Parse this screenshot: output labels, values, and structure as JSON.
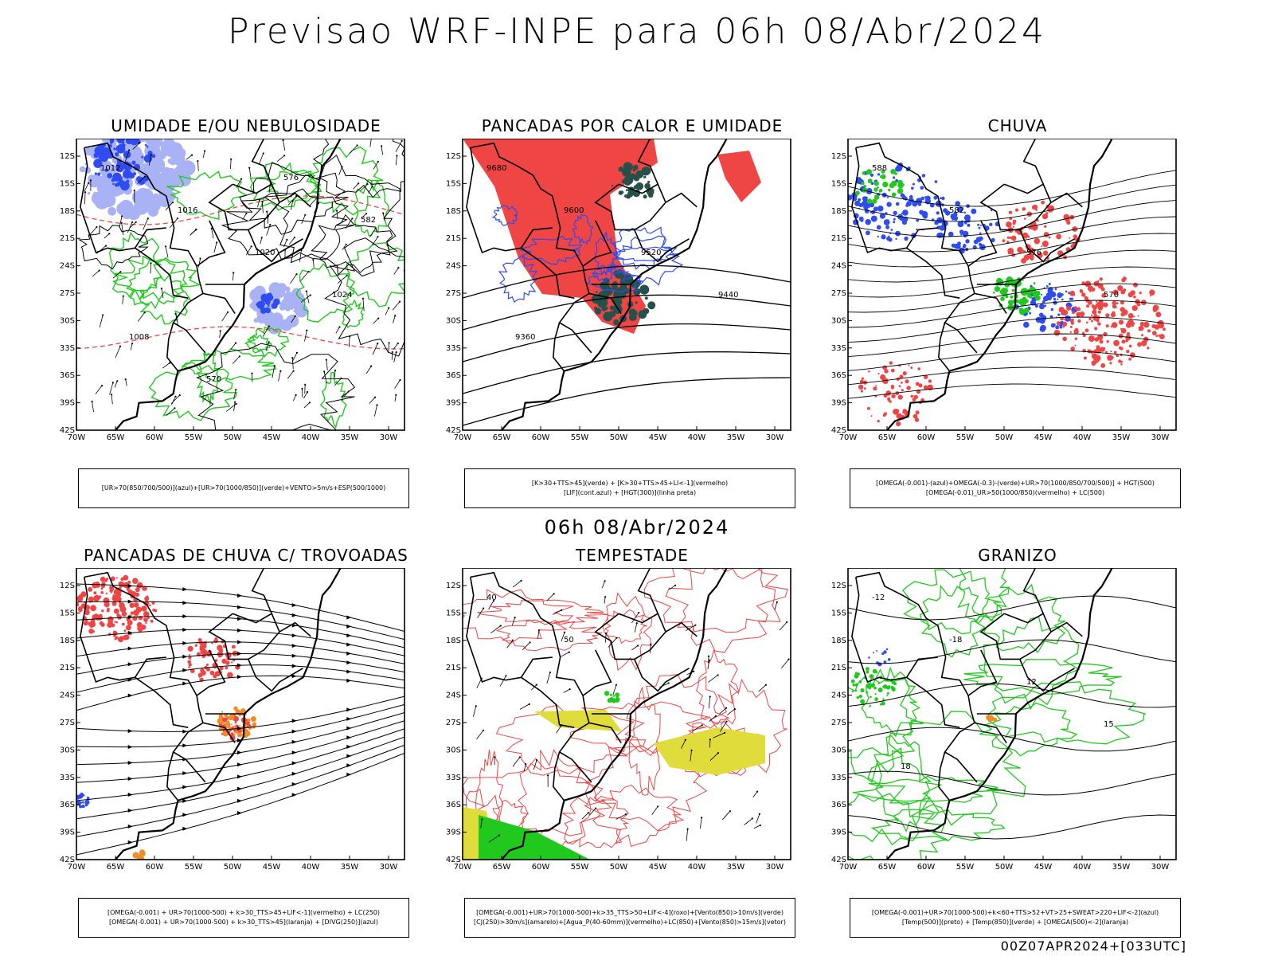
{
  "header": {
    "title": "Previsao WRF-INPE  para 06h 08/Abr/2024",
    "mid_title": "06h 08/Abr/2024",
    "footer": "00Z07APR2024+[033UTC]"
  },
  "axes": {
    "lat_labels": [
      "12S",
      "15S",
      "18S",
      "21S",
      "24S",
      "27S",
      "30S",
      "33S",
      "36S",
      "39S",
      "42S"
    ],
    "lon_labels": [
      "70W",
      "65W",
      "60W",
      "55W",
      "50W",
      "45W",
      "40W",
      "35W",
      "30W"
    ]
  },
  "colors": {
    "blue": "#2e4cf0",
    "lightblue": "#a9b2f5",
    "green": "#21c91e",
    "red": "#f04545",
    "darkteal": "#28504a",
    "orange": "#f08c28",
    "yellow": "#e0dc3c",
    "black": "#000000"
  },
  "panels": [
    {
      "id": "umidade",
      "title": "UMIDADE E/OU NEBULOSIDADE",
      "legend": [
        "[UR>70(850/700/500)](azul)+[UR>70(1000/850)](verde)+VENTO>5m/s+ESP(500/1000)"
      ],
      "contour_labels": [
        "1012",
        "1016",
        "1020",
        "1024",
        "1008",
        "570",
        "576",
        "582"
      ]
    },
    {
      "id": "pancadas-calor",
      "title": "PANCADAS POR CALOR E UMIDADE",
      "legend": [
        "[K>30+TTS>45](verde) + [K>30+TTS>45+LI<-1](vermelho)",
        "[LIF](cont.azul) + [HGT(300)](linha preta)"
      ],
      "contour_labels": [
        "9680",
        "9600",
        "9520",
        "9440",
        "9360"
      ]
    },
    {
      "id": "chuva",
      "title": "CHUVA",
      "legend": [
        "[OMEGA(-0.001)-(azul)+OMEGA(-0.3)-(verde)+UR>70(1000/850/700/500)] + HGT(500)",
        "[OMEGA(-0.01)_UR>50(1000/850)(vermelho) + LC(500)"
      ],
      "contour_labels": [
        "588",
        "582",
        "576",
        "570"
      ]
    },
    {
      "id": "trovoadas",
      "title": "PANCADAS DE CHUVA C/ TROVOADAS",
      "legend": [
        "[OMEGA(-0.001) + UR>70(1000-500) + k>30_TTS>45+LIF<-1](vermelho) + LC(250)",
        "[OMEGA(-0.001) + UR>70(1000-500) + k>30_TTS>45](laranja) + [DIVG(250)](azul)"
      ],
      "contour_labels": []
    },
    {
      "id": "tempestade",
      "title": "TEMPESTADE",
      "legend": [
        "[OMEGA(-0.001)+UR>70(1000-500)+k>35_TTS>50+LIF<-4](roxo)+[Vento(850)>10m/s](verde)",
        "[CJ(250)>30m/s](amarelo)+[Agua_P(40-60mm)](vermelho)+LC(850)+[Vento(850)>15m/s](vetor)"
      ],
      "contour_labels": [
        "40",
        "50"
      ]
    },
    {
      "id": "granizo",
      "title": "GRANIZO",
      "legend": [
        "[OMEGA(-0.001)+UR>70(1000-500)+k<60+TTS>52+VT>25+SWEAT>220+LIF<-2](azul)",
        "[Temp(500)](preto) + [Temp(850)](verde) + [OMEGA(500)<-2](laranja)"
      ],
      "contour_labels": [
        "-12",
        "-18",
        "12",
        "15",
        "18"
      ]
    }
  ]
}
